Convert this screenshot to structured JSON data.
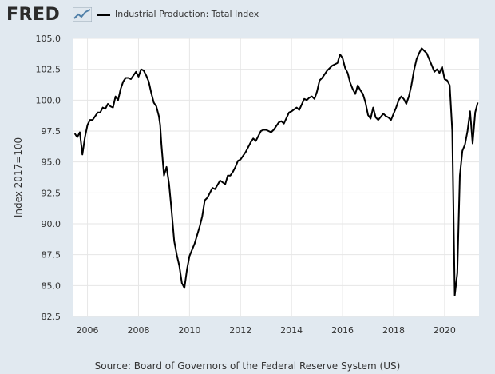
{
  "header": {
    "logo_text": "FRED",
    "logo_icon": "trend-line-icon",
    "legend_label": "Industrial Production: Total Index"
  },
  "source": "Source: Board of Governors of the Federal Reserve System (US)",
  "colors": {
    "background": "#e1e9f0",
    "plot_background": "#ffffff",
    "line": "#000000",
    "grid": "#e6e6e6"
  },
  "chart_data": {
    "type": "line",
    "ylabel": "Index 2017=100",
    "ylim": [
      82.5,
      105.0
    ],
    "xlim": [
      2005.45,
      2021.35
    ],
    "yticks": [
      "82.5",
      "85.0",
      "87.5",
      "90.0",
      "92.5",
      "95.0",
      "97.5",
      "100.0",
      "102.5",
      "105.0"
    ],
    "xticks": [
      "2006",
      "2008",
      "2010",
      "2012",
      "2014",
      "2016",
      "2018",
      "2020"
    ],
    "grid": true,
    "legend_position": "top",
    "series": [
      {
        "name": "Industrial Production: Total Index",
        "x": [
          2005.5,
          2005.6,
          2005.7,
          2005.8,
          2005.9,
          2006.0,
          2006.1,
          2006.2,
          2006.3,
          2006.4,
          2006.5,
          2006.6,
          2006.7,
          2006.8,
          2006.9,
          2007.0,
          2007.1,
          2007.2,
          2007.3,
          2007.4,
          2007.5,
          2007.6,
          2007.7,
          2007.8,
          2007.9,
          2008.0,
          2008.1,
          2008.2,
          2008.3,
          2008.4,
          2008.5,
          2008.6,
          2008.7,
          2008.8,
          2008.85,
          2008.9,
          2009.0,
          2009.1,
          2009.2,
          2009.3,
          2009.4,
          2009.5,
          2009.6,
          2009.7,
          2009.8,
          2009.9,
          2010.0,
          2010.2,
          2010.3,
          2010.4,
          2010.5,
          2010.6,
          2010.7,
          2010.8,
          2010.9,
          2011.0,
          2011.2,
          2011.4,
          2011.5,
          2011.6,
          2011.7,
          2011.8,
          2011.9,
          2012.0,
          2012.2,
          2012.4,
          2012.5,
          2012.6,
          2012.8,
          2012.9,
          2013.0,
          2013.2,
          2013.3,
          2013.5,
          2013.6,
          2013.7,
          2013.9,
          2014.0,
          2014.2,
          2014.3,
          2014.5,
          2014.6,
          2014.7,
          2014.8,
          2014.9,
          2015.0,
          2015.1,
          2015.2,
          2015.4,
          2015.5,
          2015.6,
          2015.8,
          2015.9,
          2016.0,
          2016.1,
          2016.2,
          2016.3,
          2016.4,
          2016.5,
          2016.6,
          2016.7,
          2016.8,
          2016.9,
          2017.0,
          2017.1,
          2017.2,
          2017.3,
          2017.4,
          2017.6,
          2017.7,
          2017.8,
          2017.9,
          2018.0,
          2018.1,
          2018.2,
          2018.3,
          2018.4,
          2018.5,
          2018.6,
          2018.7,
          2018.8,
          2018.9,
          2019.0,
          2019.1,
          2019.2,
          2019.3,
          2019.4,
          2019.5,
          2019.6,
          2019.7,
          2019.8,
          2019.9,
          2020.0,
          2020.1,
          2020.2,
          2020.3,
          2020.4,
          2020.5,
          2020.6,
          2020.7,
          2020.8,
          2020.9,
          2021.0,
          2021.1,
          2021.2,
          2021.3
        ],
        "values": [
          97.3,
          97.0,
          97.4,
          95.6,
          97.0,
          98.0,
          98.4,
          98.4,
          98.7,
          99.0,
          99.0,
          99.4,
          99.3,
          99.7,
          99.5,
          99.4,
          100.3,
          100.0,
          100.9,
          101.5,
          101.8,
          101.8,
          101.7,
          102.0,
          102.3,
          101.9,
          102.5,
          102.4,
          102.0,
          101.5,
          100.6,
          99.8,
          99.5,
          98.7,
          98.0,
          96.4,
          93.9,
          94.6,
          93.2,
          91.0,
          88.6,
          87.5,
          86.6,
          85.2,
          84.8,
          86.3,
          87.4,
          88.4,
          89.1,
          89.8,
          90.6,
          91.9,
          92.1,
          92.5,
          92.9,
          92.8,
          93.5,
          93.2,
          93.9,
          93.9,
          94.2,
          94.6,
          95.1,
          95.2,
          95.8,
          96.6,
          96.9,
          96.7,
          97.5,
          97.6,
          97.6,
          97.4,
          97.6,
          98.2,
          98.3,
          98.1,
          99.0,
          99.1,
          99.4,
          99.2,
          100.1,
          100.0,
          100.2,
          100.3,
          100.1,
          100.7,
          101.6,
          101.8,
          102.4,
          102.6,
          102.8,
          103.0,
          103.7,
          103.4,
          102.6,
          102.2,
          101.4,
          100.9,
          100.5,
          101.2,
          100.8,
          100.5,
          99.8,
          98.8,
          98.5,
          99.4,
          98.6,
          98.4,
          98.9,
          98.7,
          98.6,
          98.4,
          98.9,
          99.4,
          100.0,
          100.3,
          100.1,
          99.7,
          100.3,
          101.2,
          102.4,
          103.3,
          103.8,
          104.2,
          104.0,
          103.8,
          103.3,
          102.8,
          102.3,
          102.5,
          102.2,
          102.7,
          101.7,
          101.6,
          101.2,
          97.5,
          84.2,
          86.0,
          93.9,
          95.9,
          96.4,
          97.5,
          99.1,
          96.5,
          99.0,
          99.8
        ]
      }
    ]
  }
}
